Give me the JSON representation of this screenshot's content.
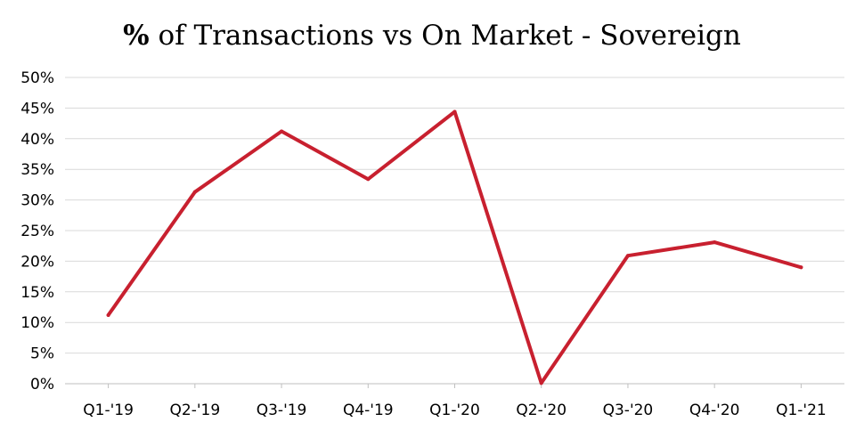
{
  "chart_data": {
    "type": "line",
    "title_prefix": "%",
    "title_rest": " of Transactions vs On Market - Sovereign",
    "title": "% of Transactions vs On Market - Sovereign",
    "xlabel": "",
    "ylabel": "",
    "categories": [
      "Q1-'19",
      "Q2-'19",
      "Q3-'19",
      "Q4-'19",
      "Q1-'20",
      "Q2-'20",
      "Q3-'20",
      "Q4-'20",
      "Q1-'21"
    ],
    "y_ticks": [
      "0%",
      "5%",
      "10%",
      "15%",
      "20%",
      "25%",
      "30%",
      "35%",
      "40%",
      "45%",
      "50%"
    ],
    "ylim": [
      0,
      50
    ],
    "y_unit": "%",
    "grid": true,
    "legend": "none",
    "series": [
      {
        "values": [
          11.2,
          31.3,
          41.2,
          33.4,
          44.4,
          0.1,
          20.9,
          23.1,
          19.0
        ],
        "color": "#c8202f"
      }
    ]
  }
}
